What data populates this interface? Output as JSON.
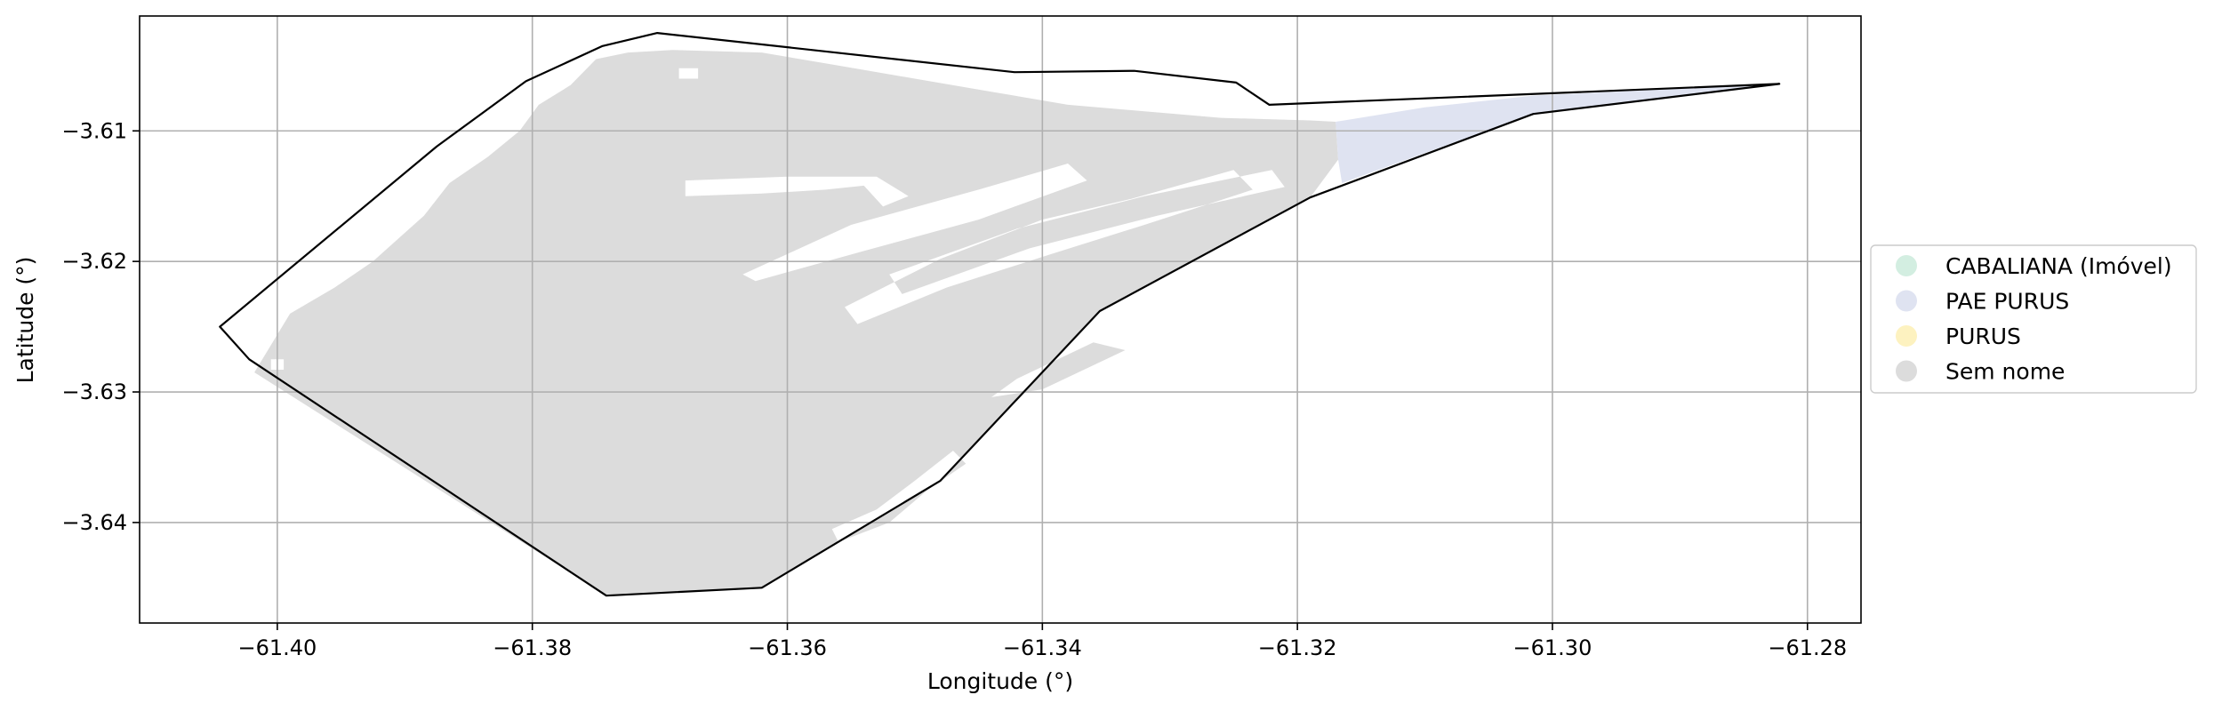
{
  "chart_data": {
    "type": "map",
    "xlabel": "Longitude (°)",
    "ylabel": "Latitude (°)",
    "xlim": [
      -61.4108,
      -61.2758
    ],
    "ylim": [
      -3.6477,
      -3.6012
    ],
    "x_ticks": [
      -61.4,
      -61.38,
      -61.36,
      -61.34,
      -61.32,
      -61.3,
      -61.28
    ],
    "x_tick_labels": [
      "−61.40",
      "−61.38",
      "−61.36",
      "−61.34",
      "−61.32",
      "−61.30",
      "−61.28"
    ],
    "y_ticks": [
      -3.61,
      -3.62,
      -3.63,
      -3.64
    ],
    "y_tick_labels": [
      "−3.61",
      "−3.62",
      "−3.63",
      "−3.64"
    ],
    "grid": true,
    "legend_position": "right",
    "legend": [
      {
        "label": "CABALIANA (Imóvel)",
        "color": "#d3eee1"
      },
      {
        "label": "PAE PURUS",
        "color": "#dfe3f1"
      },
      {
        "label": "PURUS",
        "color": "#fdf2c0"
      },
      {
        "label": "Sem nome",
        "color": "#dcdcdc"
      }
    ],
    "boundary": [
      [
        -61.4045,
        -3.625
      ],
      [
        -61.3875,
        -3.6112
      ],
      [
        -61.3805,
        -3.6062
      ],
      [
        -61.3745,
        -3.6035
      ],
      [
        -61.3702,
        -3.6025
      ],
      [
        -61.3422,
        -3.6055
      ],
      [
        -61.3328,
        -3.6054
      ],
      [
        -61.3248,
        -3.6063
      ],
      [
        -61.3222,
        -3.608
      ],
      [
        -61.2822,
        -3.6064
      ],
      [
        -61.3015,
        -3.6087
      ],
      [
        -61.319,
        -3.6151
      ],
      [
        -61.3355,
        -3.6238
      ],
      [
        -61.348,
        -3.6368
      ],
      [
        -61.362,
        -3.645
      ],
      [
        -61.3742,
        -3.6456
      ],
      [
        -61.4022,
        -3.6275
      ]
    ],
    "sem_nome_area": [
      [
        -61.4018,
        -3.6285
      ],
      [
        -61.399,
        -3.624
      ],
      [
        -61.3955,
        -3.622
      ],
      [
        -61.3925,
        -3.62
      ],
      [
        -61.3885,
        -3.6165
      ],
      [
        -61.3865,
        -3.614
      ],
      [
        -61.3835,
        -3.612
      ],
      [
        -61.381,
        -3.61
      ],
      [
        -61.3795,
        -3.608
      ],
      [
        -61.377,
        -3.6065
      ],
      [
        -61.375,
        -3.6045
      ],
      [
        -61.3725,
        -3.604
      ],
      [
        -61.369,
        -3.6038
      ],
      [
        -61.362,
        -3.604
      ],
      [
        -61.356,
        -3.605
      ],
      [
        -61.35,
        -3.606
      ],
      [
        -61.344,
        -3.607
      ],
      [
        -61.338,
        -3.608
      ],
      [
        -61.332,
        -3.6085
      ],
      [
        -61.326,
        -3.609
      ],
      [
        -61.319,
        -3.6092
      ],
      [
        -61.317,
        -3.6093
      ],
      [
        -61.3168,
        -3.6122
      ],
      [
        -61.319,
        -3.6151
      ],
      [
        -61.3355,
        -3.6238
      ],
      [
        -61.348,
        -3.6368
      ],
      [
        -61.362,
        -3.645
      ],
      [
        -61.3742,
        -3.6456
      ]
    ],
    "pae_purus_area": [
      [
        -61.317,
        -3.6093
      ],
      [
        -61.31,
        -3.6082
      ],
      [
        -61.3015,
        -3.6073
      ],
      [
        -61.2822,
        -3.6064
      ],
      [
        -61.3015,
        -3.6087
      ],
      [
        -61.3165,
        -3.614
      ],
      [
        -61.3168,
        -3.6122
      ]
    ],
    "holes": [
      [
        [
          -61.3685,
          -3.6052
        ],
        [
          -61.367,
          -3.6052
        ],
        [
          -61.367,
          -3.606
        ],
        [
          -61.3685,
          -3.606
        ]
      ],
      [
        [
          -61.368,
          -3.615
        ],
        [
          -61.362,
          -3.6148
        ],
        [
          -61.357,
          -3.6145
        ],
        [
          -61.354,
          -3.6142
        ],
        [
          -61.3525,
          -3.6158
        ],
        [
          -61.3505,
          -3.615
        ],
        [
          -61.353,
          -3.6135
        ],
        [
          -61.36,
          -3.6135
        ],
        [
          -61.368,
          -3.6138
        ]
      ],
      [
        [
          -61.3635,
          -3.621
        ],
        [
          -61.355,
          -3.6172
        ],
        [
          -61.345,
          -3.6145
        ],
        [
          -61.338,
          -3.6125
        ],
        [
          -61.3365,
          -3.6138
        ],
        [
          -61.345,
          -3.6168
        ],
        [
          -61.354,
          -3.6192
        ],
        [
          -61.3625,
          -3.6215
        ]
      ],
      [
        [
          -61.3555,
          -3.6235
        ],
        [
          -61.348,
          -3.6198
        ],
        [
          -61.34,
          -3.6168
        ],
        [
          -61.333,
          -3.6152
        ],
        [
          -61.325,
          -3.613
        ],
        [
          -61.3235,
          -3.6145
        ],
        [
          -61.332,
          -3.6172
        ],
        [
          -61.3395,
          -3.6195
        ],
        [
          -61.3475,
          -3.622
        ],
        [
          -61.3545,
          -3.6248
        ]
      ],
      [
        [
          -61.342,
          -3.629
        ],
        [
          -61.336,
          -3.6262
        ],
        [
          -61.3335,
          -3.6268
        ],
        [
          -61.34,
          -3.6298
        ],
        [
          -61.344,
          -3.6304
        ]
      ],
      [
        [
          -61.352,
          -3.621
        ],
        [
          -61.342,
          -3.6175
        ],
        [
          -61.332,
          -3.615
        ],
        [
          -61.322,
          -3.613
        ],
        [
          -61.321,
          -3.6143
        ],
        [
          -61.331,
          -3.6165
        ],
        [
          -61.341,
          -3.619
        ],
        [
          -61.351,
          -3.6225
        ]
      ],
      [
        [
          -61.356,
          -3.6415
        ],
        [
          -61.352,
          -3.64
        ],
        [
          -61.349,
          -3.6375
        ],
        [
          -61.346,
          -3.6355
        ],
        [
          -61.347,
          -3.6345
        ],
        [
          -61.35,
          -3.6368
        ],
        [
          -61.353,
          -3.639
        ],
        [
          -61.3565,
          -3.6405
        ]
      ],
      [
        [
          -61.4005,
          -3.6275
        ],
        [
          -61.3995,
          -3.6275
        ],
        [
          -61.3995,
          -3.6283
        ],
        [
          -61.4005,
          -3.6283
        ]
      ]
    ]
  }
}
